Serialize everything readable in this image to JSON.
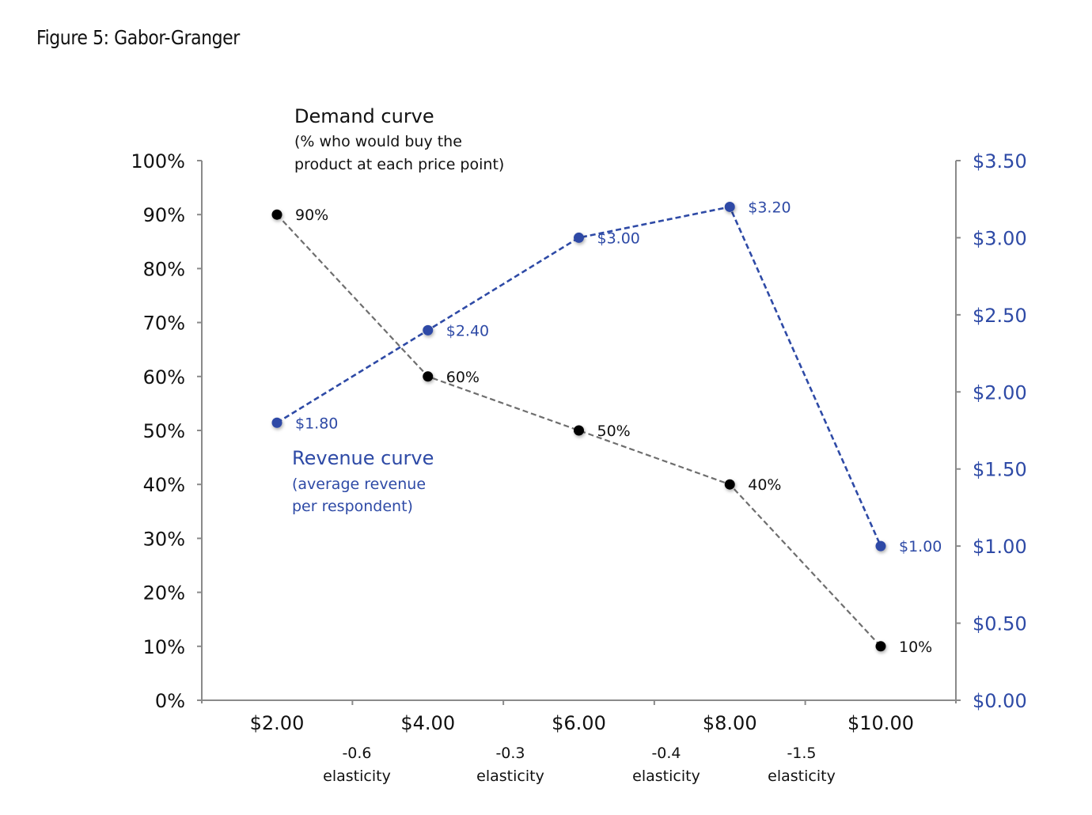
{
  "figure_title": "Figure 5: Gabor-Granger",
  "colors": {
    "demand": "#000000",
    "demand_line": "#6e6e6e",
    "revenue": "#2e4aa6",
    "axis": "#8a8a8a"
  },
  "chart_data": {
    "type": "line",
    "title": "Figure 5: Gabor-Granger",
    "xlabel": "",
    "categories": [
      "$2.00",
      "$4.00",
      "$6.00",
      "$8.00",
      "$10.00"
    ],
    "left_axis": {
      "label": "",
      "ylim": [
        0,
        100
      ],
      "ticks": [
        "0%",
        "10%",
        "20%",
        "30%",
        "40%",
        "50%",
        "60%",
        "70%",
        "80%",
        "90%",
        "100%"
      ],
      "tick_values": [
        0,
        10,
        20,
        30,
        40,
        50,
        60,
        70,
        80,
        90,
        100
      ]
    },
    "right_axis": {
      "label": "",
      "ylim": [
        0,
        3.5
      ],
      "ticks": [
        "$0.00",
        "$0.50",
        "$1.00",
        "$1.50",
        "$2.00",
        "$2.50",
        "$3.00",
        "$3.50"
      ],
      "tick_values": [
        0,
        0.5,
        1.0,
        1.5,
        2.0,
        2.5,
        3.0,
        3.5
      ]
    },
    "series": [
      {
        "name": "Demand curve",
        "axis": "left",
        "style": "dashed",
        "values": [
          90,
          60,
          50,
          40,
          10
        ],
        "labels": [
          "90%",
          "60%",
          "50%",
          "40%",
          "10%"
        ]
      },
      {
        "name": "Revenue curve",
        "axis": "right",
        "style": "dashed",
        "values": [
          1.8,
          2.4,
          3.0,
          3.2,
          1.0
        ],
        "labels": [
          "$1.80",
          "$2.40",
          "$3.00",
          "$3.20",
          "$1.00"
        ]
      }
    ],
    "annotations": {
      "demand": {
        "title": "Demand curve",
        "line1": "(% who would buy the",
        "line2": "product at each price point)"
      },
      "revenue": {
        "title": "Revenue curve",
        "line1": "(average revenue",
        "line2": "per respondent)"
      }
    },
    "elasticities": [
      {
        "value": "-0.6",
        "label": "elasticity"
      },
      {
        "value": "-0.3",
        "label": "elasticity"
      },
      {
        "value": "-0.4",
        "label": "elasticity"
      },
      {
        "value": "-1.5",
        "label": "elasticity"
      }
    ],
    "grid": false,
    "legend": "none"
  }
}
